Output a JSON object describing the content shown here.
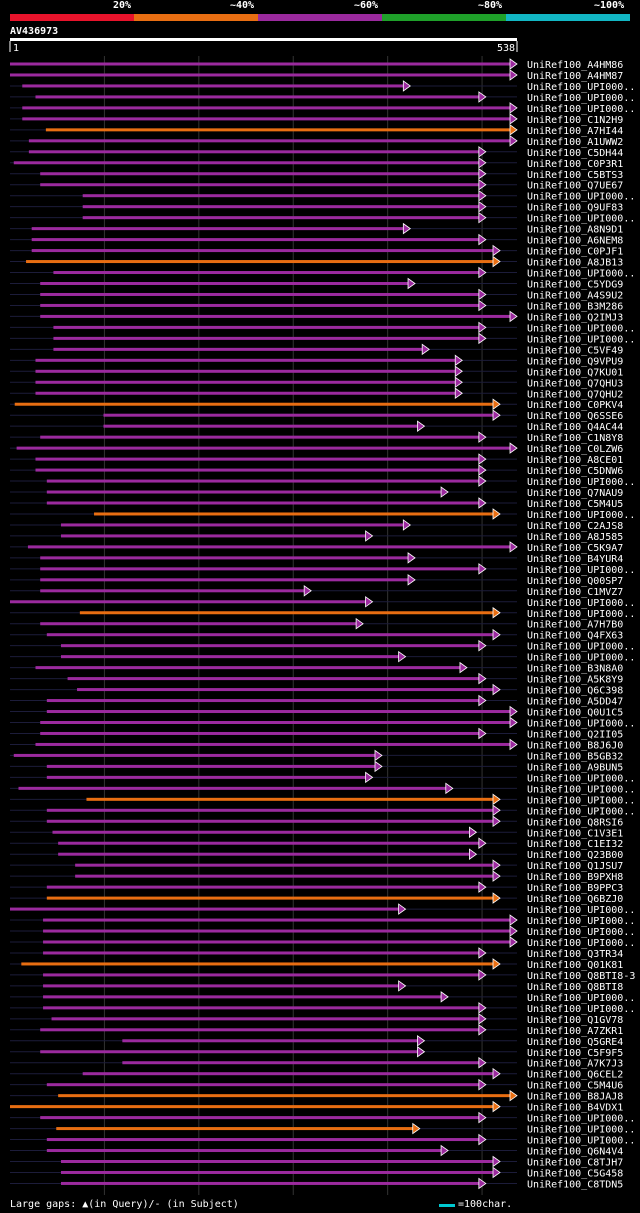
{
  "legend": {
    "labels": [
      "20%",
      "~40%",
      "~60%",
      "~80%",
      "~100%"
    ],
    "colors": [
      "#e8132b",
      "#e86e12",
      "#9b2a9e",
      "#1fa12a",
      "#12b6c4"
    ]
  },
  "query": {
    "name": "AV436973",
    "start_label": "1",
    "end_label": "538",
    "length": 538
  },
  "footer": {
    "gaps_label": "Large gaps: ▲(in Query)/- (in Subject)",
    "scale_label": "=100char."
  },
  "chart_data": {
    "type": "alignment-overview",
    "title": "AV436973",
    "x_range": [
      1,
      538
    ],
    "identity_legend": [
      "20%",
      "~40%",
      "~60%",
      "~80%",
      "~100%"
    ],
    "hits": [
      {
        "name": "UniRef100_A4HM86",
        "start": 1,
        "end": 538,
        "color": "purple"
      },
      {
        "name": "UniRef100_A4HM87",
        "start": 1,
        "end": 538,
        "color": "purple"
      },
      {
        "name": "UniRef100_UPI000..",
        "start": 14,
        "end": 425,
        "color": "purple"
      },
      {
        "name": "UniRef100_UPI000..",
        "start": 28,
        "end": 505,
        "color": "purple"
      },
      {
        "name": "UniRef100_UPI000..",
        "start": 14,
        "end": 538,
        "color": "purple"
      },
      {
        "name": "UniRef100_C1N2H9",
        "start": 14,
        "end": 538,
        "color": "purple"
      },
      {
        "name": "UniRef100_A7HI44",
        "start": 39,
        "end": 538,
        "color": "orange"
      },
      {
        "name": "UniRef100_A1UWW2",
        "start": 21,
        "end": 538,
        "color": "purple"
      },
      {
        "name": "UniRef100_C5DH44",
        "start": 21,
        "end": 505,
        "color": "purple"
      },
      {
        "name": "UniRef100_C0P3R1",
        "start": 5,
        "end": 505,
        "color": "purple"
      },
      {
        "name": "UniRef100_C5BTS3",
        "start": 33,
        "end": 505,
        "color": "purple"
      },
      {
        "name": "UniRef100_Q7UE67",
        "start": 33,
        "end": 505,
        "color": "purple"
      },
      {
        "name": "UniRef100_UPI000..",
        "start": 78,
        "end": 505,
        "color": "purple"
      },
      {
        "name": "UniRef100_Q9UF83",
        "start": 78,
        "end": 505,
        "color": "purple"
      },
      {
        "name": "UniRef100_UPI000..",
        "start": 78,
        "end": 505,
        "color": "purple"
      },
      {
        "name": "UniRef100_A8N9D1",
        "start": 24,
        "end": 425,
        "color": "purple"
      },
      {
        "name": "UniRef100_A6NEM8",
        "start": 24,
        "end": 505,
        "color": "purple"
      },
      {
        "name": "UniRef100_C0PJF1",
        "start": 24,
        "end": 520,
        "color": "purple"
      },
      {
        "name": "UniRef100_A8JB13",
        "start": 18,
        "end": 520,
        "color": "orange"
      },
      {
        "name": "UniRef100_UPI000..",
        "start": 47,
        "end": 505,
        "color": "purple"
      },
      {
        "name": "UniRef100_C5YDG9",
        "start": 33,
        "end": 430,
        "color": "purple"
      },
      {
        "name": "UniRef100_A4S9U2",
        "start": 33,
        "end": 505,
        "color": "purple"
      },
      {
        "name": "UniRef100_B3M286",
        "start": 33,
        "end": 505,
        "color": "purple"
      },
      {
        "name": "UniRef100_Q2IMJ3",
        "start": 33,
        "end": 538,
        "color": "purple"
      },
      {
        "name": "UniRef100_UPI000..",
        "start": 47,
        "end": 505,
        "color": "purple"
      },
      {
        "name": "UniRef100_UPI000..",
        "start": 47,
        "end": 505,
        "color": "purple"
      },
      {
        "name": "UniRef100_C5VF49",
        "start": 47,
        "end": 445,
        "color": "purple"
      },
      {
        "name": "UniRef100_Q9VPU9",
        "start": 28,
        "end": 480,
        "color": "purple"
      },
      {
        "name": "UniRef100_Q7KU01",
        "start": 28,
        "end": 480,
        "color": "purple"
      },
      {
        "name": "UniRef100_Q7QHU3",
        "start": 28,
        "end": 480,
        "color": "purple"
      },
      {
        "name": "UniRef100_Q7QHU2",
        "start": 28,
        "end": 480,
        "color": "purple"
      },
      {
        "name": "UniRef100_C0PKV4",
        "start": 6,
        "end": 520,
        "color": "orange"
      },
      {
        "name": "UniRef100_Q6SSE6",
        "start": 100,
        "end": 520,
        "color": "purple"
      },
      {
        "name": "UniRef100_Q4AC44",
        "start": 100,
        "end": 440,
        "color": "purple"
      },
      {
        "name": "UniRef100_C1N8Y8",
        "start": 33,
        "end": 505,
        "color": "purple"
      },
      {
        "name": "UniRef100_C0LZW6",
        "start": 8,
        "end": 538,
        "color": "purple"
      },
      {
        "name": "UniRef100_A8CE01",
        "start": 28,
        "end": 505,
        "color": "purple"
      },
      {
        "name": "UniRef100_C5DNW6",
        "start": 28,
        "end": 505,
        "color": "purple"
      },
      {
        "name": "UniRef100_UPI000..",
        "start": 40,
        "end": 505,
        "color": "purple"
      },
      {
        "name": "UniRef100_Q7NAU9",
        "start": 40,
        "end": 465,
        "color": "purple"
      },
      {
        "name": "UniRef100_C5M4U5",
        "start": 40,
        "end": 505,
        "color": "purple"
      },
      {
        "name": "UniRef100_UPI000..",
        "start": 90,
        "end": 520,
        "color": "orange"
      },
      {
        "name": "UniRef100_C2AJS8",
        "start": 55,
        "end": 425,
        "color": "purple"
      },
      {
        "name": "UniRef100_A8J585",
        "start": 55,
        "end": 385,
        "color": "purple"
      },
      {
        "name": "UniRef100_C5K9A7",
        "start": 20,
        "end": 538,
        "color": "purple"
      },
      {
        "name": "UniRef100_B4YUR4",
        "start": 33,
        "end": 430,
        "color": "purple"
      },
      {
        "name": "UniRef100_UPI000..",
        "start": 33,
        "end": 505,
        "color": "purple"
      },
      {
        "name": "UniRef100_Q00SP7",
        "start": 33,
        "end": 430,
        "color": "purple"
      },
      {
        "name": "UniRef100_C1MVZ7",
        "start": 33,
        "end": 320,
        "color": "purple"
      },
      {
        "name": "UniRef100_UPI000..",
        "start": 1,
        "end": 385,
        "color": "purple"
      },
      {
        "name": "UniRef100_UPI000..",
        "start": 75,
        "end": 520,
        "color": "orange"
      },
      {
        "name": "UniRef100_A7H7B0",
        "start": 33,
        "end": 375,
        "color": "purple"
      },
      {
        "name": "UniRef100_Q4FX63",
        "start": 40,
        "end": 520,
        "color": "purple"
      },
      {
        "name": "UniRef100_UPI000..",
        "start": 55,
        "end": 505,
        "color": "purple"
      },
      {
        "name": "UniRef100_UPI000..",
        "start": 55,
        "end": 420,
        "color": "purple"
      },
      {
        "name": "UniRef100_B3N8A0",
        "start": 28,
        "end": 485,
        "color": "purple"
      },
      {
        "name": "UniRef100_A5K8Y9",
        "start": 62,
        "end": 505,
        "color": "purple"
      },
      {
        "name": "UniRef100_Q6C398",
        "start": 72,
        "end": 520,
        "color": "purple"
      },
      {
        "name": "UniRef100_A5DD47",
        "start": 40,
        "end": 505,
        "color": "purple"
      },
      {
        "name": "UniRef100_Q0U1C5",
        "start": 40,
        "end": 538,
        "color": "purple"
      },
      {
        "name": "UniRef100_UPI000..",
        "start": 33,
        "end": 538,
        "color": "purple"
      },
      {
        "name": "UniRef100_Q2II05",
        "start": 33,
        "end": 505,
        "color": "purple"
      },
      {
        "name": "UniRef100_B8J6J0",
        "start": 28,
        "end": 538,
        "color": "purple"
      },
      {
        "name": "UniRef100_B5GB32",
        "start": 5,
        "end": 395,
        "color": "purple"
      },
      {
        "name": "UniRef100_A9BUN5",
        "start": 40,
        "end": 395,
        "color": "purple"
      },
      {
        "name": "UniRef100_UPI000..",
        "start": 40,
        "end": 385,
        "color": "purple"
      },
      {
        "name": "UniRef100_UPI000..",
        "start": 10,
        "end": 470,
        "color": "purple"
      },
      {
        "name": "UniRef100_UPI000..",
        "start": 82,
        "end": 520,
        "color": "orange"
      },
      {
        "name": "UniRef100_UPI000..",
        "start": 40,
        "end": 520,
        "color": "purple"
      },
      {
        "name": "UniRef100_Q8RSI6",
        "start": 40,
        "end": 520,
        "color": "purple"
      },
      {
        "name": "UniRef100_C1V3E1",
        "start": 46,
        "end": 495,
        "color": "purple"
      },
      {
        "name": "UniRef100_C1EI32",
        "start": 52,
        "end": 505,
        "color": "purple"
      },
      {
        "name": "UniRef100_Q23B00",
        "start": 52,
        "end": 495,
        "color": "purple"
      },
      {
        "name": "UniRef100_Q1JSU7",
        "start": 70,
        "end": 520,
        "color": "purple"
      },
      {
        "name": "UniRef100_B9PXH8",
        "start": 70,
        "end": 520,
        "color": "purple"
      },
      {
        "name": "UniRef100_B9PPC3",
        "start": 40,
        "end": 505,
        "color": "purple"
      },
      {
        "name": "UniRef100_Q6BZJ0",
        "start": 40,
        "end": 520,
        "color": "orange"
      },
      {
        "name": "UniRef100_UPI000..",
        "start": 1,
        "end": 420,
        "color": "purple"
      },
      {
        "name": "UniRef100_UPI000..",
        "start": 36,
        "end": 538,
        "color": "purple"
      },
      {
        "name": "UniRef100_UPI000..",
        "start": 36,
        "end": 538,
        "color": "purple"
      },
      {
        "name": "UniRef100_UPI000..",
        "start": 36,
        "end": 538,
        "color": "purple"
      },
      {
        "name": "UniRef100_Q3TR34",
        "start": 36,
        "end": 505,
        "color": "purple"
      },
      {
        "name": "UniRef100_Q01K81",
        "start": 13,
        "end": 520,
        "color": "orange"
      },
      {
        "name": "UniRef100_Q8BTI8-3",
        "start": 36,
        "end": 505,
        "color": "purple"
      },
      {
        "name": "UniRef100_Q8BTI8",
        "start": 36,
        "end": 420,
        "color": "purple"
      },
      {
        "name": "UniRef100_UPI000..",
        "start": 36,
        "end": 465,
        "color": "purple"
      },
      {
        "name": "UniRef100_UPI000..",
        "start": 36,
        "end": 505,
        "color": "purple"
      },
      {
        "name": "UniRef100_Q1GV78",
        "start": 45,
        "end": 505,
        "color": "purple"
      },
      {
        "name": "UniRef100_A7ZKR1",
        "start": 33,
        "end": 505,
        "color": "purple"
      },
      {
        "name": "UniRef100_Q5GRE4",
        "start": 120,
        "end": 440,
        "color": "purple"
      },
      {
        "name": "UniRef100_C5F9F5",
        "start": 33,
        "end": 440,
        "color": "purple"
      },
      {
        "name": "UniRef100_A7K7J3",
        "start": 120,
        "end": 505,
        "color": "purple"
      },
      {
        "name": "UniRef100_Q6CEL2",
        "start": 78,
        "end": 520,
        "color": "purple"
      },
      {
        "name": "UniRef100_C5M4U6",
        "start": 40,
        "end": 505,
        "color": "purple"
      },
      {
        "name": "UniRef100_B8JAJ8",
        "start": 52,
        "end": 538,
        "color": "orange"
      },
      {
        "name": "UniRef100_B4VDX1",
        "start": 1,
        "end": 520,
        "color": "orange"
      },
      {
        "name": "UniRef100_UPI000..",
        "start": 33,
        "end": 505,
        "color": "purple"
      },
      {
        "name": "UniRef100_UPI000..",
        "start": 50,
        "end": 435,
        "color": "orange"
      },
      {
        "name": "UniRef100_UPI000..",
        "start": 40,
        "end": 505,
        "color": "purple"
      },
      {
        "name": "UniRef100_Q6N4V4",
        "start": 40,
        "end": 465,
        "color": "purple"
      },
      {
        "name": "UniRef100_C8TJH7",
        "start": 55,
        "end": 520,
        "color": "purple"
      },
      {
        "name": "UniRef100_C5G458",
        "start": 55,
        "end": 520,
        "color": "purple"
      },
      {
        "name": "UniRef100_C8TDN5",
        "start": 55,
        "end": 505,
        "color": "purple"
      }
    ]
  }
}
